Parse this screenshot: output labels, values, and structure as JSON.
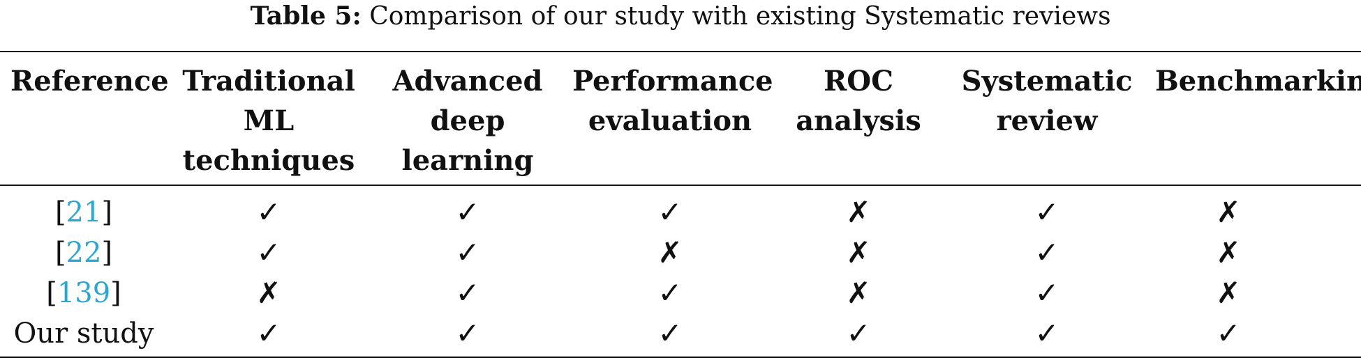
{
  "caption": {
    "label": "Table 5:",
    "text": "Comparison of our study with existing Systematic reviews"
  },
  "table": {
    "headers": [
      {
        "lines": [
          "Reference"
        ]
      },
      {
        "lines": [
          "Traditional",
          "ML",
          "techniques"
        ]
      },
      {
        "lines": [
          "Advanced",
          "deep",
          "learning"
        ]
      },
      {
        "lines": [
          "Performance",
          "evaluation"
        ]
      },
      {
        "lines": [
          "ROC",
          "analysis"
        ]
      },
      {
        "lines": [
          "Systematic",
          "review"
        ]
      },
      {
        "lines": [
          "Benchmarking"
        ]
      }
    ],
    "rows": [
      {
        "ref_open": "[",
        "ref_cite": "21",
        "ref_close": "]",
        "ref_text": "",
        "marks": [
          "✓",
          "✓",
          "✓",
          "✗",
          "✓",
          "✗"
        ]
      },
      {
        "ref_open": "[",
        "ref_cite": "22",
        "ref_close": "]",
        "ref_text": "",
        "marks": [
          "✓",
          "✓",
          "✗",
          "✗",
          "✓",
          "✗"
        ]
      },
      {
        "ref_open": "[",
        "ref_cite": "139",
        "ref_close": "]",
        "ref_text": "",
        "marks": [
          "✗",
          "✓",
          "✓",
          "✗",
          "✓",
          "✗"
        ]
      },
      {
        "ref_open": "",
        "ref_cite": "",
        "ref_close": "",
        "ref_text": "Our study",
        "marks": [
          "✓",
          "✓",
          "✓",
          "✓",
          "✓",
          "✓"
        ]
      }
    ]
  }
}
